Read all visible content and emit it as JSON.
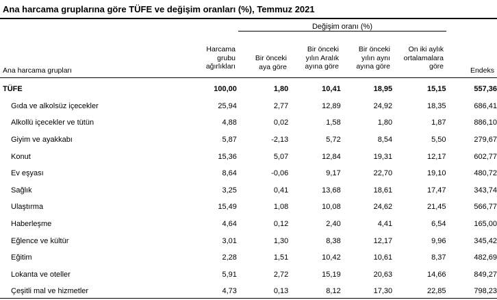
{
  "title": "Ana harcama gruplarına göre TÜFE ve değişim oranları (%), Temmuz 2021",
  "group_header": "Değişim oranı (%)",
  "row_header": "Ana harcama grupları",
  "columns": {
    "weight": [
      "Harcama",
      "grubu",
      "ağırlıkları"
    ],
    "monthly": [
      "Bir önceki",
      "aya göre"
    ],
    "since_dec": [
      "Bir önceki",
      "yılın Aralık",
      "ayına göre"
    ],
    "yoy": [
      "Bir önceki",
      "yılın aynı",
      "ayına göre"
    ],
    "avg12": [
      "On iki aylık",
      "ortalamalara",
      "göre"
    ],
    "index": [
      "Endeks"
    ]
  },
  "rows": [
    {
      "name": "TÜFE",
      "weight": "100,00",
      "monthly": "1,80",
      "since_dec": "10,41",
      "yoy": "18,95",
      "avg12": "15,15",
      "index": "557,36",
      "total": true
    },
    {
      "name": "Gıda ve alkolsüz içecekler",
      "weight": "25,94",
      "monthly": "2,77",
      "since_dec": "12,89",
      "yoy": "24,92",
      "avg12": "18,35",
      "index": "686,41"
    },
    {
      "name": "Alkollü içecekler ve tütün",
      "weight": "4,88",
      "monthly": "0,02",
      "since_dec": "1,58",
      "yoy": "1,80",
      "avg12": "1,87",
      "index": "886,10"
    },
    {
      "name": "Giyim ve ayakkabı",
      "weight": "5,87",
      "monthly": "-2,13",
      "since_dec": "5,72",
      "yoy": "8,54",
      "avg12": "5,50",
      "index": "279,67"
    },
    {
      "name": "Konut",
      "weight": "15,36",
      "monthly": "5,07",
      "since_dec": "12,84",
      "yoy": "19,31",
      "avg12": "12,17",
      "index": "602,77"
    },
    {
      "name": "Ev eşyası",
      "weight": "8,64",
      "monthly": "-0,06",
      "since_dec": "9,17",
      "yoy": "22,70",
      "avg12": "19,10",
      "index": "480,72"
    },
    {
      "name": "Sağlık",
      "weight": "3,25",
      "monthly": "0,41",
      "since_dec": "13,68",
      "yoy": "18,61",
      "avg12": "17,47",
      "index": "343,74"
    },
    {
      "name": "Ulaştırma",
      "weight": "15,49",
      "monthly": "1,08",
      "since_dec": "10,08",
      "yoy": "24,62",
      "avg12": "21,45",
      "index": "566,77"
    },
    {
      "name": "Haberleşme",
      "weight": "4,64",
      "monthly": "0,12",
      "since_dec": "2,40",
      "yoy": "4,41",
      "avg12": "6,54",
      "index": "165,00"
    },
    {
      "name": "Eğlence ve kültür",
      "weight": "3,01",
      "monthly": "1,30",
      "since_dec": "8,38",
      "yoy": "12,17",
      "avg12": "9,96",
      "index": "345,42"
    },
    {
      "name": "Eğitim",
      "weight": "2,28",
      "monthly": "1,51",
      "since_dec": "10,42",
      "yoy": "10,61",
      "avg12": "8,37",
      "index": "482,69"
    },
    {
      "name": "Lokanta ve oteller",
      "weight": "5,91",
      "monthly": "2,72",
      "since_dec": "15,19",
      "yoy": "20,63",
      "avg12": "14,66",
      "index": "849,27"
    },
    {
      "name": "Çeşitli mal ve hizmetler",
      "weight": "4,73",
      "monthly": "0,13",
      "since_dec": "8,12",
      "yoy": "17,30",
      "avg12": "22,85",
      "index": "798,23"
    }
  ]
}
